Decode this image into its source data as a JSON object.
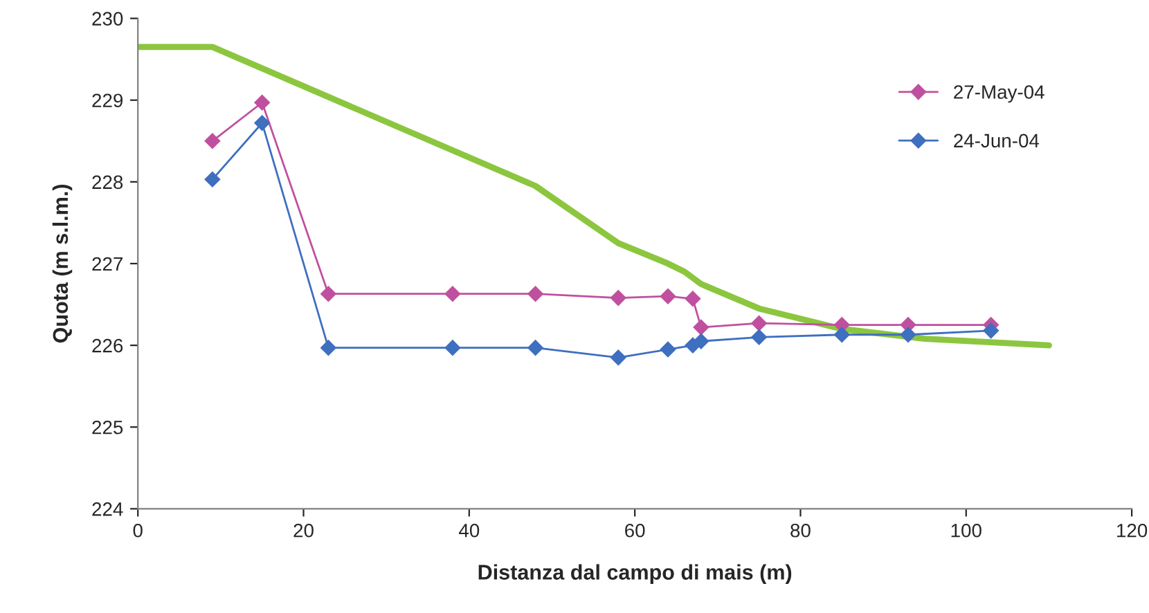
{
  "chart_data": {
    "type": "line",
    "xlabel": "Distanza dal campo di mais (m)",
    "ylabel": "Quota (m s.l.m.)",
    "xlim": [
      0,
      120
    ],
    "xticks": [
      0,
      20,
      40,
      60,
      80,
      100,
      120
    ],
    "ylim": [
      224,
      230
    ],
    "yticks": [
      224,
      225,
      226,
      227,
      228,
      229,
      230
    ],
    "grid": false,
    "legend": "top right",
    "marker": "diamond",
    "series": [
      {
        "name": "27-May-04",
        "color": "#c0509f",
        "x": [
          9,
          15,
          23,
          38,
          48,
          58,
          64,
          67,
          68,
          75,
          85,
          93,
          103
        ],
        "values": [
          228.5,
          228.97,
          226.63,
          226.63,
          226.63,
          226.58,
          226.6,
          226.57,
          226.22,
          226.27,
          226.25,
          226.25,
          226.25
        ]
      },
      {
        "name": "24-Jun-04",
        "color": "#3f6fbf",
        "x": [
          9,
          15,
          23,
          38,
          48,
          58,
          64,
          67,
          68,
          75,
          85,
          93,
          103
        ],
        "values": [
          228.03,
          228.72,
          225.97,
          225.97,
          225.97,
          225.85,
          225.95,
          226.0,
          226.05,
          226.1,
          226.13,
          226.13,
          226.18
        ]
      },
      {
        "color": "#8cc63f",
        "marker": "none",
        "x": [
          0,
          9,
          48,
          58,
          64,
          66,
          68,
          75,
          85,
          95,
          110
        ],
        "values": [
          229.65,
          229.65,
          227.95,
          227.25,
          227.0,
          226.9,
          226.75,
          226.45,
          226.2,
          226.08,
          226.0
        ]
      }
    ]
  }
}
